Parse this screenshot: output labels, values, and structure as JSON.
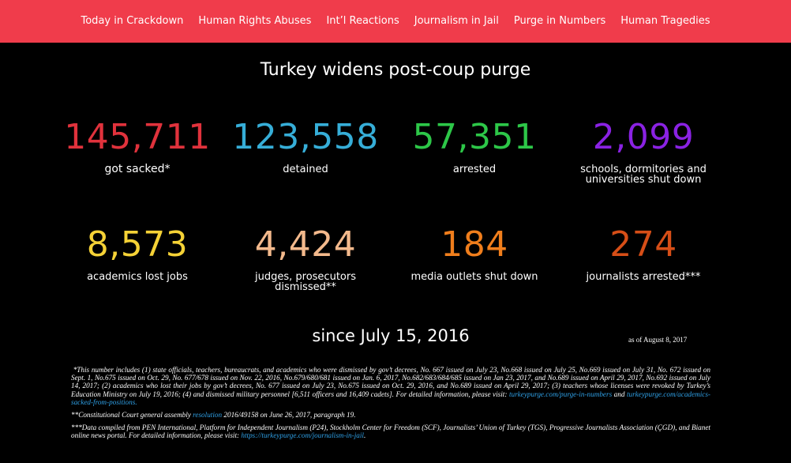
{
  "nav": {
    "items": [
      "Today in Crackdown",
      "Human Rights Abuses",
      "Int’l Reactions",
      "Journalism in Jail",
      "Purge in Numbers",
      "Human Tragedies"
    ]
  },
  "page": {
    "title": "Turkey widens post-coup purge",
    "since": "since July 15, 2016",
    "as_of": "as of August 8, 2017"
  },
  "stats": [
    {
      "value": "145,711",
      "label": "got sacked*",
      "color": "#e0323c"
    },
    {
      "value": "123,558",
      "label": "detained",
      "color": "#36aed8"
    },
    {
      "value": "57,351",
      "label": "arrested",
      "color": "#2dc748"
    },
    {
      "value": "2,099",
      "label": "schools, dormitories and universities shut down",
      "color": "#8a22e3"
    },
    {
      "value": "8,573",
      "label": "academics lost jobs",
      "color": "#f5d236"
    },
    {
      "value": "4,424",
      "label": "judges, prosecutors dismissed**",
      "color": "#f3b98c"
    },
    {
      "value": "184",
      "label": "media outlets shut down",
      "color": "#f07e1c"
    },
    {
      "value": "274",
      "label": "journalists arrested***",
      "color": "#d64e17"
    }
  ],
  "notes": {
    "n1_text": "*This number includes (1) state officials, teachers, bureaucrats, and academics who were dismissed by gov’t decrees, No. 667 issued on July 23, No.668 issued on July 25, No.669 issued on July 31, No. 672 issued on Sept. 1, No.675 issued on Oct. 29, No. 677/678 issued on Nov. 22, 2016, No.679/680/681 issued on Jan. 6, 2017, No.682/683/684/685 issued on Jan 23, 2017, and No.689 issued on April 29, 2017, No.692 issued on July 14, 2017; (2) academics who lost their jobs by gov’t decrees, No. 677 issued on July 23, No.675 issued on Oct. 29, 2016, and No.689 issued on April 29, 2017; (3) teachers whose licenses were revoked by Turkey’s Education Ministry on July 19, 2016; (4) and dismissed military personnel [6,511 officers and 16,409 cadets]. For detailed information, please visit: ",
    "n1_link1": "turkeypurge.com/purge-in-numbers",
    "n1_and": " and ",
    "n1_link2": "turkeypurge.com/academics-sacked-from-positions.",
    "n2_pre": "**Constitutional Court general assembly ",
    "n2_link": "resolution",
    "n2_post": " 2016/49158 on June 26, 2017, paragraph 19.",
    "n3_text": "***Data compiled from PEN International, Platform for Independent Journalism (P24), Stockholm Center for Freedom (SCF), Journalists’ Union of Turkey (TGS), Progressive Journalists Association (ÇGD), and Bianet online news portal. For detailed information, please visit: ",
    "n3_link": "https://turkeypurge.com/journalism-in-jail",
    "n3_end": "."
  }
}
